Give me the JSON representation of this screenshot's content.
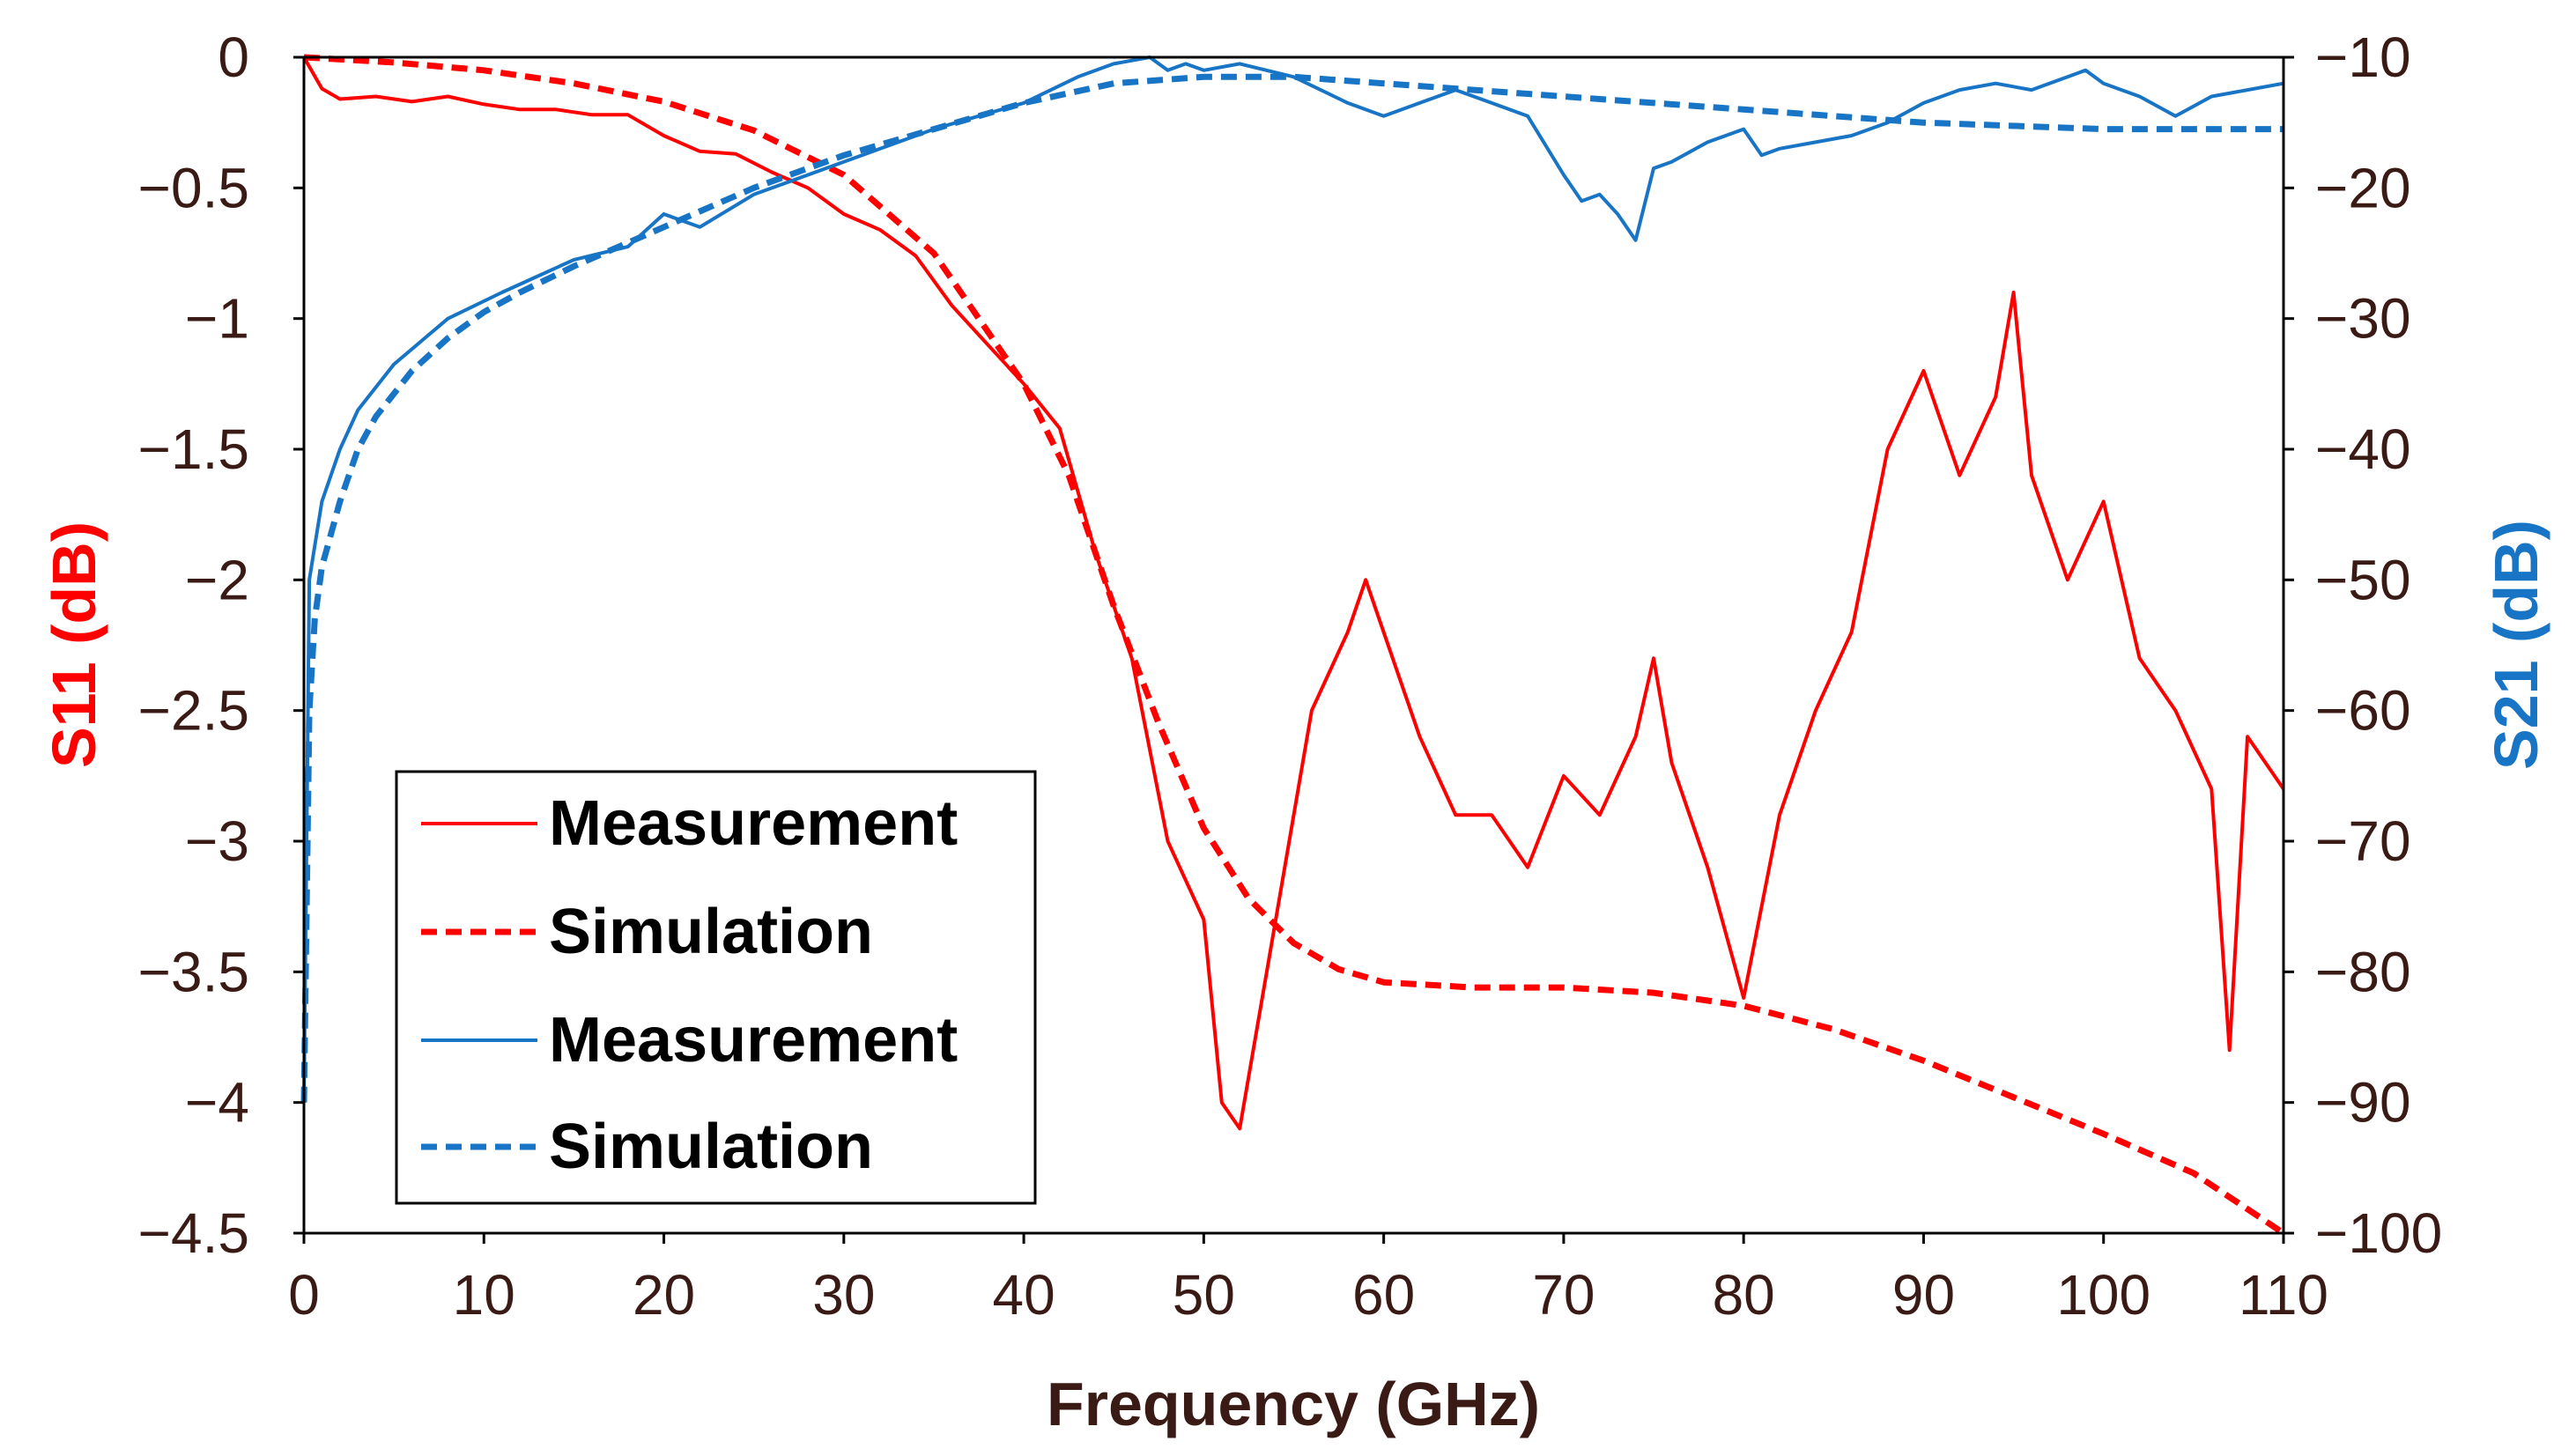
{
  "chart_data": {
    "type": "line",
    "xlabel": "Frequency (GHz)",
    "ylabel_left": "S11 (dB)",
    "ylabel_right": "S21 (dB)",
    "xlim": [
      0,
      110
    ],
    "ylim_left": [
      -4.5,
      0
    ],
    "ylim_right": [
      -100,
      -10
    ],
    "x_ticks": [
      0,
      10,
      20,
      30,
      40,
      50,
      60,
      70,
      80,
      90,
      100,
      110
    ],
    "x_tick_labels": [
      "0",
      "10",
      "20",
      "30",
      "40",
      "50",
      "60",
      "70",
      "80",
      "90",
      "100",
      "110"
    ],
    "y_left_ticks": [
      0,
      -0.5,
      -1,
      -1.5,
      -2,
      -2.5,
      -3,
      -3.5,
      -4,
      -4.5
    ],
    "y_left_tick_labels": [
      "0",
      "−0.5",
      "−1",
      "−1.5",
      "−2",
      "−2.5",
      "−3",
      "−3.5",
      "−4",
      "−4.5"
    ],
    "y_right_ticks": [
      -10,
      -20,
      -30,
      -40,
      -50,
      -60,
      -70,
      -80,
      -90,
      -100
    ],
    "y_right_tick_labels": [
      "−10",
      "−20",
      "−30",
      "−40",
      "−50",
      "−60",
      "−70",
      "−80",
      "−90",
      "−100"
    ],
    "colors": {
      "s11": "#ff0000",
      "s21": "#1874c4",
      "ink": "#3a1a14"
    },
    "legend": {
      "placement": "lower-left",
      "entries": [
        {
          "label": "Measurement",
          "series": "s11_meas"
        },
        {
          "label": "Simulation",
          "series": "s11_sim"
        },
        {
          "label": "Measurement",
          "series": "s21_meas"
        },
        {
          "label": "Simulation",
          "series": "s21_sim"
        }
      ]
    },
    "series": [
      {
        "id": "s11_meas",
        "name": "Measurement",
        "axis": "left",
        "style": "solid",
        "color": "#ff0000",
        "x": [
          0,
          1,
          2,
          4,
          6,
          8,
          10,
          12,
          14,
          16,
          18,
          20,
          22,
          24,
          26,
          28,
          30,
          32,
          34,
          36,
          38,
          40,
          42,
          44,
          46,
          48,
          50,
          51,
          52,
          54,
          56,
          58,
          59,
          60,
          62,
          64,
          66,
          68,
          70,
          72,
          74,
          75,
          76,
          78,
          80,
          82,
          84,
          86,
          88,
          90,
          92,
          94,
          95,
          96,
          98,
          100,
          102,
          104,
          106,
          107,
          108,
          110
        ],
        "y": [
          0,
          -0.12,
          -0.16,
          -0.15,
          -0.17,
          -0.15,
          -0.18,
          -0.2,
          -0.2,
          -0.22,
          -0.22,
          -0.3,
          -0.36,
          -0.37,
          -0.44,
          -0.5,
          -0.6,
          -0.66,
          -0.76,
          -0.95,
          -1.1,
          -1.25,
          -1.42,
          -1.9,
          -2.3,
          -3.0,
          -3.3,
          -4.0,
          -4.1,
          -3.3,
          -2.5,
          -2.2,
          -2.0,
          -2.2,
          -2.6,
          -2.9,
          -2.9,
          -3.1,
          -2.75,
          -2.9,
          -2.6,
          -2.3,
          -2.7,
          -3.1,
          -3.6,
          -2.9,
          -2.5,
          -2.2,
          -1.5,
          -1.2,
          -1.6,
          -1.3,
          -0.9,
          -1.6,
          -2.0,
          -1.7,
          -2.3,
          -2.5,
          -2.8,
          -3.8,
          -2.6,
          -2.8
        ]
      },
      {
        "id": "s11_sim",
        "name": "Simulation",
        "axis": "left",
        "style": "dashed",
        "color": "#ff0000",
        "x": [
          0,
          5,
          10,
          15,
          20,
          25,
          30,
          35,
          40,
          42.5,
          45,
          47.5,
          50,
          52.5,
          55,
          57.5,
          60,
          65,
          70,
          75,
          80,
          85,
          90,
          95,
          100,
          105,
          110
        ],
        "y": [
          0,
          -0.02,
          -0.05,
          -0.1,
          -0.17,
          -0.28,
          -0.45,
          -0.75,
          -1.25,
          -1.6,
          -2.1,
          -2.55,
          -2.95,
          -3.22,
          -3.39,
          -3.49,
          -3.54,
          -3.56,
          -3.56,
          -3.58,
          -3.63,
          -3.72,
          -3.84,
          -3.98,
          -4.12,
          -4.27,
          -4.5
        ]
      },
      {
        "id": "s21_meas",
        "name": "Measurement",
        "axis": "right",
        "style": "solid",
        "color": "#1874c4",
        "x": [
          0,
          0.3,
          1,
          2,
          3,
          5,
          8,
          11,
          15,
          18,
          20,
          22,
          25,
          30,
          35,
          40,
          43,
          45,
          47,
          48,
          49,
          50,
          52,
          55,
          58,
          60,
          62,
          64,
          66,
          68,
          70,
          71,
          72,
          73,
          74,
          75,
          76,
          78,
          79,
          80,
          81,
          82,
          84,
          86,
          88,
          90,
          92,
          94,
          96,
          98,
          99,
          100,
          102,
          104,
          106,
          108,
          110
        ],
        "y": [
          -90,
          -50,
          -44,
          -40,
          -37,
          -33.5,
          -30,
          -28,
          -25.5,
          -24.5,
          -22,
          -23,
          -20.5,
          -18,
          -15.5,
          -13.5,
          -11.5,
          -10.5,
          -10,
          -11,
          -10.5,
          -11,
          -10.5,
          -11.5,
          -13.5,
          -14.5,
          -13.5,
          -12.5,
          -13.5,
          -14.5,
          -19,
          -21,
          -20.5,
          -22,
          -24,
          -18.5,
          -18,
          -16.5,
          -16,
          -15.5,
          -17.5,
          -17,
          -16.5,
          -16,
          -15,
          -13.5,
          -12.5,
          -12,
          -12.5,
          -11.5,
          -11,
          -12,
          -13,
          -14.5,
          -13,
          -12.5,
          -12
        ]
      },
      {
        "id": "s21_sim",
        "name": "Simulation",
        "axis": "right",
        "style": "dashed",
        "color": "#1874c4",
        "x": [
          0,
          0.3,
          0.6,
          1,
          2,
          3,
          4,
          6,
          8,
          10,
          12,
          15,
          20,
          25,
          30,
          35,
          40,
          45,
          50,
          55,
          60,
          65,
          70,
          80,
          90,
          100,
          110
        ],
        "y": [
          -90,
          -60,
          -53,
          -49,
          -44,
          -40,
          -37.5,
          -34,
          -31.5,
          -29.5,
          -28,
          -26,
          -23,
          -20,
          -17.5,
          -15.5,
          -13.5,
          -12,
          -11.5,
          -11.5,
          -12,
          -12.5,
          -13,
          -14,
          -15,
          -15.5,
          -15.5
        ]
      }
    ]
  }
}
